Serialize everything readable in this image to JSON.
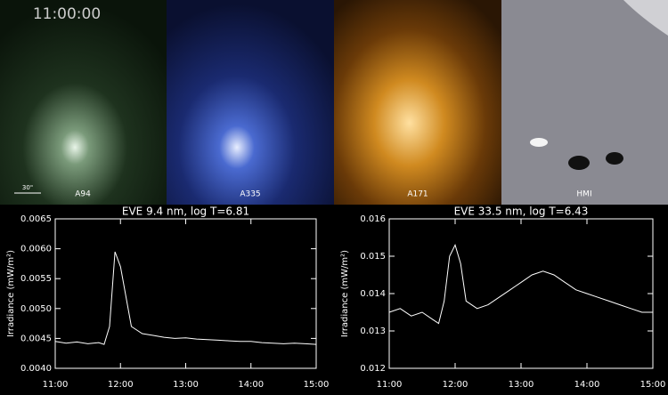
{
  "panels": {
    "timestamp": "11:00:00",
    "scale": "30\"",
    "labels": [
      "A94",
      "A335",
      "A171",
      "HMI"
    ]
  },
  "chart_data": [
    {
      "type": "line",
      "title": "EVE 9.4 nm, log T=6.81",
      "ylabel": "Irradiance (mW/m²)",
      "x": [
        "11:00",
        "11:10",
        "11:20",
        "11:30",
        "11:40",
        "11:45",
        "11:50",
        "11:55",
        "12:00",
        "12:05",
        "12:10",
        "12:20",
        "12:30",
        "12:40",
        "12:50",
        "13:00",
        "13:10",
        "13:20",
        "13:30",
        "13:40",
        "13:50",
        "14:00",
        "14:10",
        "14:20",
        "14:30",
        "14:40",
        "14:50",
        "15:00"
      ],
      "series": [
        {
          "color": "#ffffff",
          "values": [
            0.00445,
            0.00442,
            0.00444,
            0.00441,
            0.00443,
            0.0044,
            0.0047,
            0.00595,
            0.0057,
            0.0052,
            0.0047,
            0.00458,
            0.00455,
            0.00452,
            0.0045,
            0.00451,
            0.00449,
            0.00448,
            0.00447,
            0.00446,
            0.00445,
            0.00445,
            0.00443,
            0.00442,
            0.00441,
            0.00442,
            0.00441,
            0.0044
          ]
        }
      ],
      "xlim": [
        "11:00",
        "15:00"
      ],
      "xticks": [
        "11:00",
        "12:00",
        "13:00",
        "14:00",
        "15:00"
      ],
      "ylim": [
        0.004,
        0.0065
      ],
      "yticks": [
        {
          "value": 0.004,
          "label": "0.0040"
        },
        {
          "value": 0.0045,
          "label": "0.0045"
        },
        {
          "value": 0.005,
          "label": "0.0050"
        },
        {
          "value": 0.0055,
          "label": "0.0055"
        },
        {
          "value": 0.006,
          "label": "0.0060"
        },
        {
          "value": 0.0065,
          "label": "0.0065"
        }
      ]
    },
    {
      "type": "line",
      "title": "EVE 33.5 nm, log T=6.43",
      "ylabel": "Irradiance (mW/m²)",
      "x": [
        "11:00",
        "11:10",
        "11:20",
        "11:30",
        "11:40",
        "11:45",
        "11:50",
        "11:55",
        "12:00",
        "12:05",
        "12:10",
        "12:20",
        "12:30",
        "12:40",
        "12:50",
        "12:55",
        "13:00",
        "13:10",
        "13:20",
        "13:30",
        "13:40",
        "13:50",
        "14:00",
        "14:10",
        "14:20",
        "14:30",
        "14:40",
        "14:50",
        "15:00"
      ],
      "series": [
        {
          "color": "#ffffff",
          "values": [
            0.0135,
            0.0136,
            0.0134,
            0.0135,
            0.0133,
            0.0132,
            0.0138,
            0.015,
            0.0153,
            0.0148,
            0.0138,
            0.0136,
            0.0137,
            0.0139,
            0.0141,
            0.0142,
            0.0143,
            0.0145,
            0.0146,
            0.0145,
            0.0143,
            0.0141,
            0.014,
            0.0139,
            0.0138,
            0.0137,
            0.0136,
            0.0135,
            0.0135
          ]
        }
      ],
      "xlim": [
        "11:00",
        "15:00"
      ],
      "xticks": [
        "11:00",
        "12:00",
        "13:00",
        "14:00",
        "15:00"
      ],
      "ylim": [
        0.012,
        0.016
      ],
      "yticks": [
        0.012,
        0.013,
        0.014,
        0.015,
        0.016
      ]
    }
  ]
}
